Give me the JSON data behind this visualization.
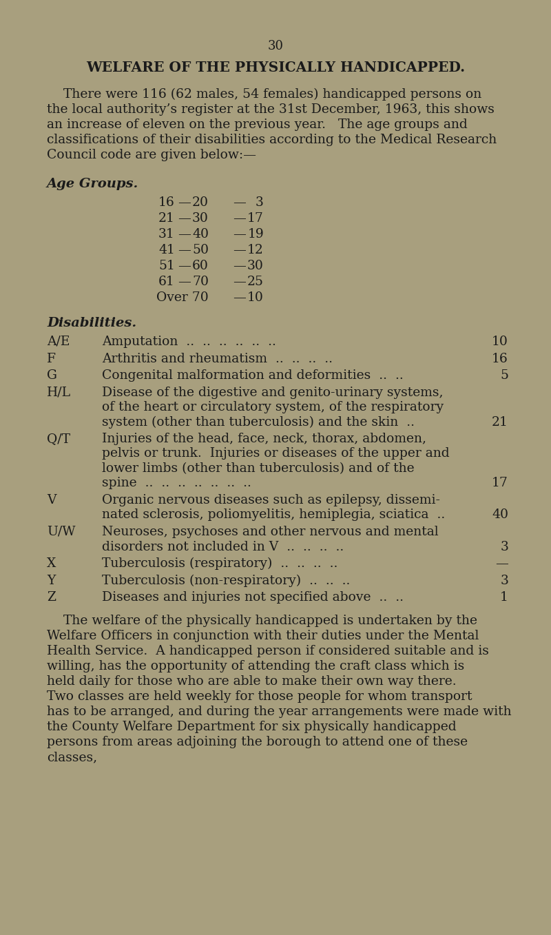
{
  "bg_color": "#a89f7e",
  "text_color": "#1a1a1a",
  "page_number": "30",
  "title": "WELFARE OF THE PHYSICALLY HANDICAPPED.",
  "intro_lines": [
    "    There were 116 (62 males, 54 females) handicapped persons on",
    "the local authority’s register at the 31st December, 1963, this shows",
    "an increase of eleven on the previous year.   The age groups and",
    "classifications of their disabilities according to the Medical Research",
    "Council code are given below:—"
  ],
  "age_groups_heading": "Age Groups.",
  "age_groups": [
    [
      "16",
      "20",
      "3"
    ],
    [
      "21",
      "30",
      "17"
    ],
    [
      "31",
      "40",
      "19"
    ],
    [
      "41",
      "50",
      "12"
    ],
    [
      "51",
      "60",
      "30"
    ],
    [
      "61",
      "70",
      "25"
    ],
    [
      "Over 70",
      "",
      "10"
    ]
  ],
  "disabilities_heading": "Disabilities.",
  "disabilities_layout": [
    {
      "code": "A/E",
      "lines": [
        "Amputation  ..  ..  ..  ..  ..  .."
      ],
      "value": "10"
    },
    {
      "code": "F",
      "lines": [
        "Arthritis and rheumatism  ..  ..  ..  .."
      ],
      "value": "16"
    },
    {
      "code": "G",
      "lines": [
        "Congenital malformation and deformities  ..  .."
      ],
      "value": "5"
    },
    {
      "code": "H/L",
      "lines": [
        "Disease of the digestive and genito-urinary systems,",
        "of the heart or circulatory system, of the respiratory",
        "system (other than tuberculosis) and the skin  .."
      ],
      "value": "21"
    },
    {
      "code": "Q/T",
      "lines": [
        "Injuries of the head, face, neck, thorax, abdomen,",
        "pelvis or trunk.  Injuries or diseases of the upper and",
        "lower limbs (other than tuberculosis) and of the",
        "spine  ..  ..  ..  ..  ..  ..  .."
      ],
      "value": "17"
    },
    {
      "code": "V",
      "lines": [
        "Organic nervous diseases such as epilepsy, dissemi-",
        "nated sclerosis, poliomyelitis, hemiplegia, sciatica  .."
      ],
      "value": "40"
    },
    {
      "code": "U/W",
      "lines": [
        "Neuroses, psychoses and other nervous and mental",
        "disorders not included in V  ..  ..  ..  .."
      ],
      "value": "3"
    },
    {
      "code": "X",
      "lines": [
        "Tuberculosis (respiratory)  ..  ..  ..  .."
      ],
      "value": "—"
    },
    {
      "code": "Y",
      "lines": [
        "Tuberculosis (non-respiratory)  ..  ..  .."
      ],
      "value": "3"
    },
    {
      "code": "Z",
      "lines": [
        "Diseases and injuries not specified above  ..  .."
      ],
      "value": "1"
    }
  ],
  "footer_lines": [
    "    The welfare of the physically handicapped is undertaken by the",
    "Welfare Officers in conjunction with their duties under the Mental",
    "Health Service.  A handicapped person if considered suitable and is",
    "willing, has the opportunity of attending the craft class which is",
    "held daily for those who are able to make their own way there.",
    "Two classes are held weekly for those people for whom transport",
    "has to be arranged, and during the year arrangements were made with",
    "the County Welfare Department for six physically handicapped",
    "persons from areas adjoining the borough to attend one of these",
    "classes,"
  ]
}
